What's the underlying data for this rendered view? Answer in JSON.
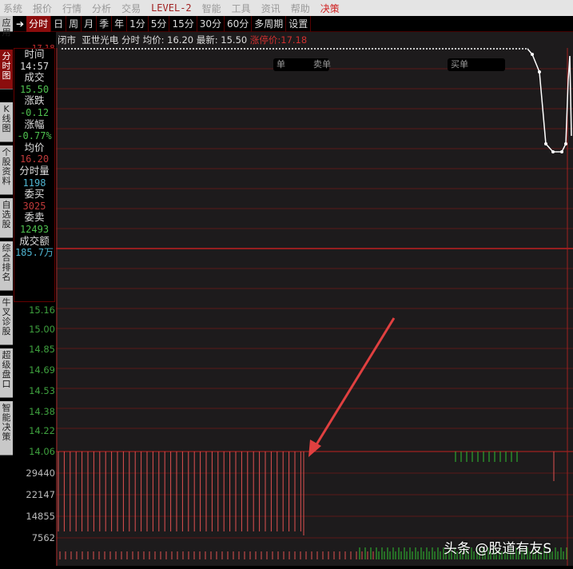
{
  "menu": [
    "系统",
    "报价",
    "行情",
    "分析",
    "交易",
    "LEVEL-2",
    "智能",
    "工具",
    "资讯",
    "帮助",
    "决策"
  ],
  "tabs": [
    "分时",
    "日",
    "周",
    "月",
    "季",
    "年",
    "1分",
    "5分",
    "15分",
    "30分",
    "60分",
    "多周期",
    "设置"
  ],
  "active_tab": "分时",
  "side_tabs": [
    "应用",
    "分时图",
    "K线图",
    "个股资料",
    "自选股",
    "综合排名",
    "牛叉诊股",
    "超级盘口",
    "智能决策"
  ],
  "quote": {
    "status": "闭市",
    "name": "亚世光电",
    "mode": "分时",
    "avg_label": "均价:",
    "avg": "16.20",
    "last_label": "最新:",
    "last": "15.50",
    "limit_label": "涨停价:",
    "limit": "17.18"
  },
  "info": [
    {
      "label": "时间",
      "value": "14:57",
      "color": "#dddddd"
    },
    {
      "label": "成交",
      "value": "15.50",
      "color": "#4fc04f"
    },
    {
      "label": "涨跌",
      "value": "-0.12",
      "color": "#4fc04f"
    },
    {
      "label": "涨幅",
      "value": "-0.77%",
      "color": "#4fc04f"
    },
    {
      "label": "均价",
      "value": "16.20",
      "color": "#c03a3a"
    },
    {
      "label": "分时量",
      "value": "1198",
      "color": "#4fb4d0"
    },
    {
      "label": "委买",
      "value": "3025",
      "color": "#c03a3a"
    },
    {
      "label": "委卖",
      "value": "12493",
      "color": "#4fc04f"
    },
    {
      "label": "成交额",
      "value": "185.7万",
      "color": "#4fb4d0"
    }
  ],
  "price_axis": {
    "top": "17.18",
    "labels": [
      "15.16",
      "15.00",
      "14.85",
      "14.69",
      "14.53",
      "14.38",
      "14.22",
      "14.06"
    ]
  },
  "volume_axis": [
    "29440",
    "22147",
    "14855",
    "7562"
  ],
  "tags": [
    "单",
    "卖单",
    "买单"
  ],
  "watermark": "头条 @股道有友S",
  "colors": {
    "up": "#e05050",
    "down": "#30c030",
    "grid": "#5a1818",
    "accent": "#8b0d0d"
  }
}
